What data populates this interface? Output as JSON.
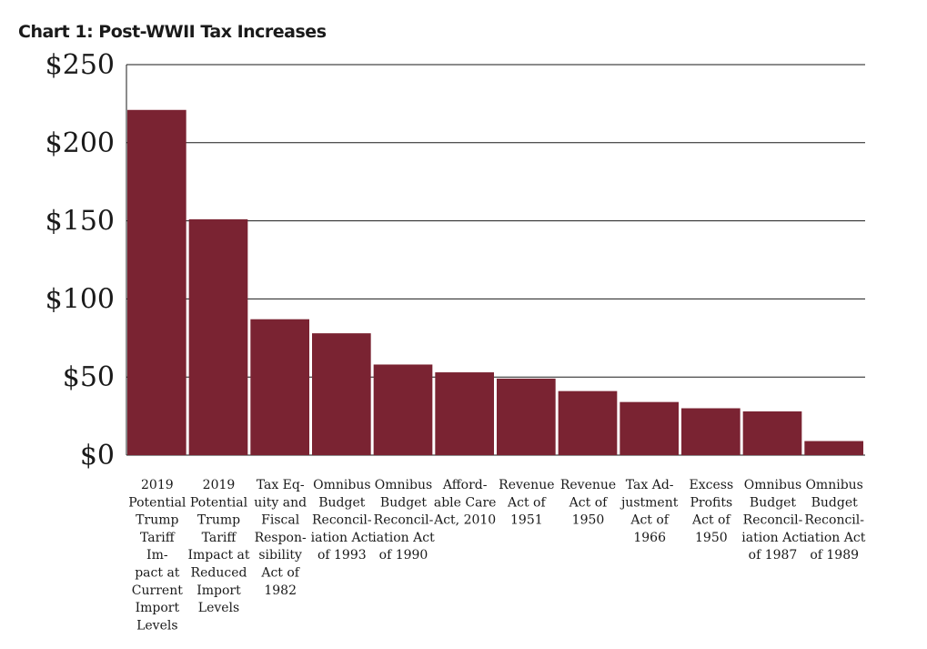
{
  "chart_data": {
    "type": "bar",
    "title": "Chart 1: Post-WWII Tax Increases",
    "xlabel": "",
    "ylabel": "",
    "ylim": [
      0,
      250
    ],
    "yticks": [
      0,
      50,
      100,
      150,
      200,
      250
    ],
    "ytick_labels": [
      "$0",
      "$50",
      "$100",
      "$150",
      "$200",
      "$250"
    ],
    "grid": true,
    "bar_color": "#7a2332",
    "categories": [
      "2019 Potential Trump Tariff Impact at Current Import Levels",
      "2019 Potential Trump Tariff Impact at Reduced Import Levels",
      "Tax Equity and Fiscal Responsibility Act of 1982",
      "Omnibus Budget Reconciliation Act of 1993",
      "Omnibus Budget Reconciliation Act of 1990",
      "Affordable Care Act, 2010",
      "Revenue Act of 1951",
      "Revenue Act of 1950",
      "Tax Adjustment Act of 1966",
      "Excess Profits Act of 1950",
      "Omnibus Budget Reconciliation Act of 1987",
      "Omnibus Budget Reconciliation Act of 1989"
    ],
    "category_label_lines": [
      [
        "2019",
        "Potential",
        "Trump",
        "Tariff",
        "Im-",
        "pact at",
        "Current",
        "Import",
        "Levels"
      ],
      [
        "2019",
        "Potential",
        "Trump",
        "Tariff",
        "Impact at",
        "Reduced",
        "Import",
        "Levels"
      ],
      [
        "Tax Eq-",
        "uity and",
        "Fiscal",
        "Respon-",
        "sibility",
        "Act of",
        "1982"
      ],
      [
        "Omnibus",
        "Budget",
        "Reconcil-",
        "iation Act",
        "of 1993"
      ],
      [
        "Omnibus",
        "Budget",
        "Reconcil-",
        "iation Act",
        "of 1990"
      ],
      [
        "Afford-",
        "able Care",
        "Act, 2010"
      ],
      [
        "Revenue",
        "Act of",
        "1951"
      ],
      [
        "Revenue",
        "Act of",
        "1950"
      ],
      [
        "Tax Ad-",
        "justment",
        "Act of",
        "1966"
      ],
      [
        "Excess",
        "Profits",
        "Act of",
        "1950"
      ],
      [
        "Omnibus",
        "Budget",
        "Reconcil-",
        "iation Act",
        "of 1987"
      ],
      [
        "Omnibus",
        "Budget",
        "Reconcil-",
        "iation Act",
        "of 1989"
      ]
    ],
    "values": [
      221,
      151,
      87,
      78,
      58,
      53,
      49,
      41,
      34,
      30,
      28,
      9
    ]
  }
}
